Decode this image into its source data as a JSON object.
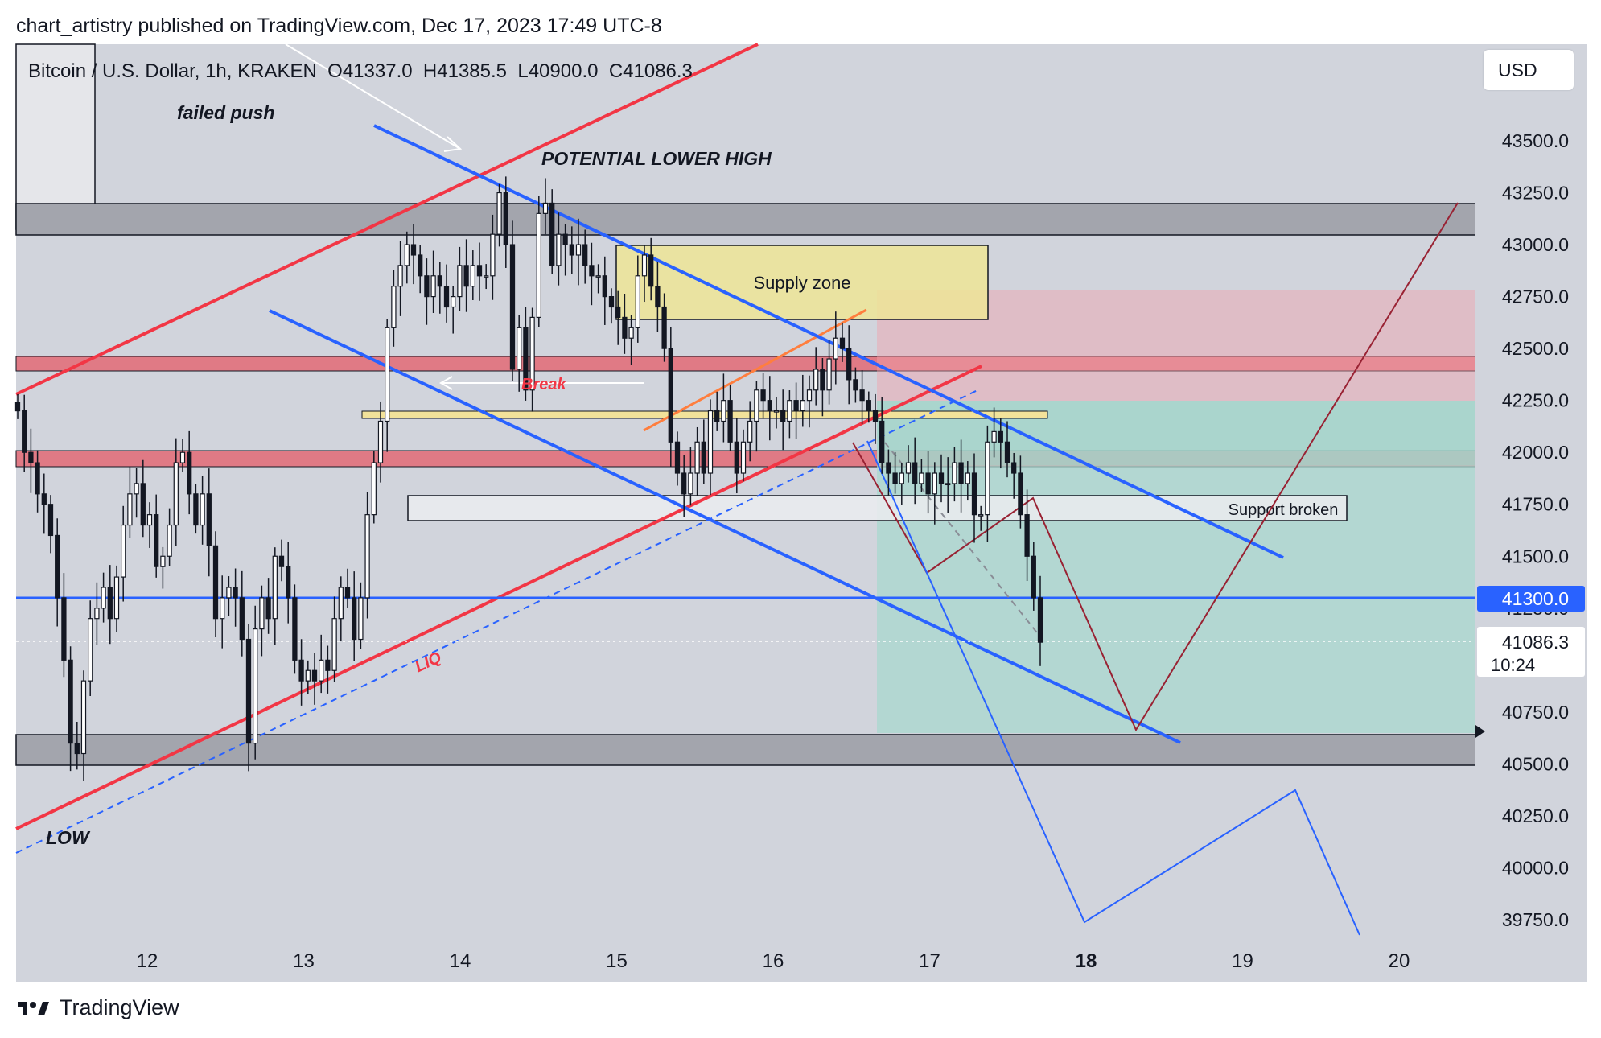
{
  "header": {
    "published_line": "chart_artistry published on TradingView.com, Dec 17, 2023 17:49 UTC-8"
  },
  "legend": {
    "symbol_line": "Bitcoin / U.S. Dollar, 1h, KRAKEN",
    "open": "O41337.0",
    "high": "H41385.5",
    "low": "L40900.0",
    "close": "C41086.3"
  },
  "currency_button": "USD",
  "footer": {
    "brand": "TradingView"
  },
  "colors": {
    "background": "#d1d4dc",
    "red_line": "#f23645",
    "blue_line": "#2962ff",
    "candle_up": "#ffffff",
    "candle_edge": "#131722",
    "price_label": "#2962ff"
  },
  "chart_data": {
    "type": "candlestick",
    "x_ticks": [
      "12",
      "13",
      "14",
      "15",
      "16",
      "17",
      "18",
      "19",
      "20"
    ],
    "y_ticks": [
      "43500.0",
      "43250.0",
      "43000.0",
      "42750.0",
      "42500.0",
      "42250.0",
      "42000.0",
      "41750.0",
      "41500.0",
      "41250.0",
      "40750.0",
      "40500.0",
      "40250.0",
      "40000.0",
      "39750.0"
    ],
    "ylim": [
      39600,
      43800
    ],
    "price_labels": {
      "blue_level": "41300.0",
      "last_price": "41086.3",
      "countdown": "10:24"
    },
    "annotations": {
      "failed_push": "failed push",
      "potential_lower_high": "POTENTIAL LOWER HIGH",
      "supply_zone": "Supply zone",
      "break": "Break",
      "support_broken": "Support broken",
      "liq": "LIQ",
      "low": "LOW"
    },
    "series": [
      {
        "name": "",
        "closes": [
          42200,
          42000,
          41950,
          41800,
          41750,
          41600,
          41300,
          41000,
          40600,
          40550,
          40900,
          41200,
          41250,
          41350,
          41200,
          41400,
          41650,
          41800,
          41850,
          41650,
          41700,
          41450,
          41500,
          41650,
          41950,
          42000,
          41800,
          41650,
          41800,
          41550,
          41200,
          41300,
          41350,
          41300,
          41100,
          40600,
          41150,
          41300,
          41200,
          41500,
          41450,
          41300,
          41000,
          40900,
          40950,
          40900,
          41000,
          40950,
          41200,
          41350,
          41300,
          41100,
          41300,
          41700,
          41950,
          42150,
          42600,
          42800,
          42900,
          43000,
          42950,
          42850,
          42750,
          42850,
          42800,
          42700,
          42750,
          42900,
          42800,
          42900,
          42850,
          42850,
          43050,
          43250,
          43000,
          42400,
          42600,
          42300,
          42650,
          43150,
          43200,
          42900,
          43050,
          43000,
          42950,
          43000,
          42900,
          42850,
          42850,
          42750,
          42700,
          42650,
          42550,
          42600,
          42850,
          42950,
          42800,
          42700,
          42500,
          42050,
          41900,
          41800,
          41900,
          42050,
          41900,
          42200,
          42150,
          42250,
          42050,
          41900,
          42050,
          42150,
          42300,
          42250,
          42200,
          42200,
          42150,
          42250,
          42200,
          42250,
          42300,
          42400,
          42300,
          42450,
          42550,
          42500,
          42350,
          42300,
          42250,
          42200,
          42150,
          41950,
          41900,
          41850,
          41900,
          41950,
          41850,
          41900,
          41800,
          41900,
          41850,
          41850,
          41950,
          41850,
          41900,
          41700,
          41700,
          42050,
          42100,
          42050,
          41950,
          41900,
          41700,
          41500,
          41300,
          41086
        ]
      }
    ]
  }
}
